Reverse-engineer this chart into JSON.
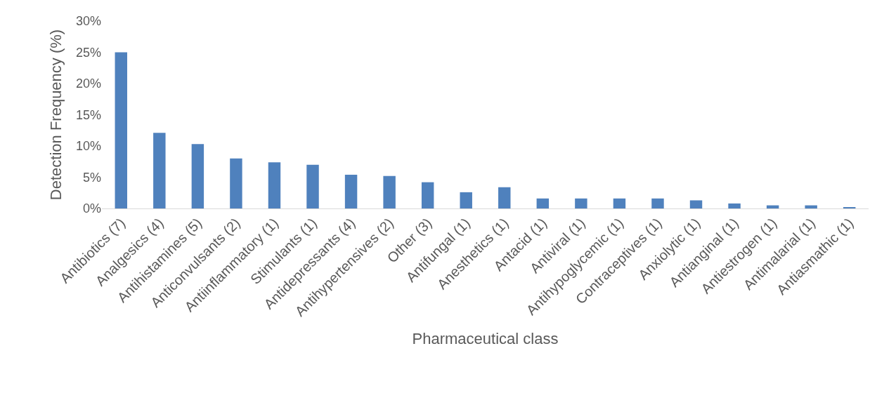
{
  "chart_data": {
    "type": "bar",
    "xlabel": "Pharmaceutical class",
    "ylabel": "Detection Frequency (%)",
    "categories": [
      "Antibiotics (7)",
      "Analgesics (4)",
      "Antihistamines (5)",
      "Anticonvulsants (2)",
      "Antiinflammatory (1)",
      "Stimulants (1)",
      "Antidepressants (4)",
      "Antihypertensives (2)",
      "Other (3)",
      "Antifungal (1)",
      "Anesthetics (1)",
      "Antacid (1)",
      "Antiviral (1)",
      "Antihypoglycemic (1)",
      "Contraceptives (1)",
      "Anxiolytic (1)",
      "Antianginal (1)",
      "Antiestrogen (1)",
      "Antimalarial (1)",
      "Antiasmathic (1)"
    ],
    "values": [
      25.0,
      12.1,
      10.3,
      8.0,
      7.4,
      7.0,
      5.4,
      5.2,
      4.2,
      2.6,
      3.4,
      1.6,
      1.6,
      1.6,
      1.6,
      1.3,
      0.8,
      0.5,
      0.5,
      0.2
    ],
    "color": "#4f81bd",
    "ylim": [
      0,
      30
    ],
    "yticks": [
      {
        "value": 0,
        "label": "0%"
      },
      {
        "value": 5,
        "label": "5%"
      },
      {
        "value": 10,
        "label": "10%"
      },
      {
        "value": 15,
        "label": "15%"
      },
      {
        "value": 20,
        "label": "20%"
      },
      {
        "value": 25,
        "label": "25%"
      },
      {
        "value": 30,
        "label": "30%"
      }
    ],
    "grid": false,
    "legend": false
  }
}
